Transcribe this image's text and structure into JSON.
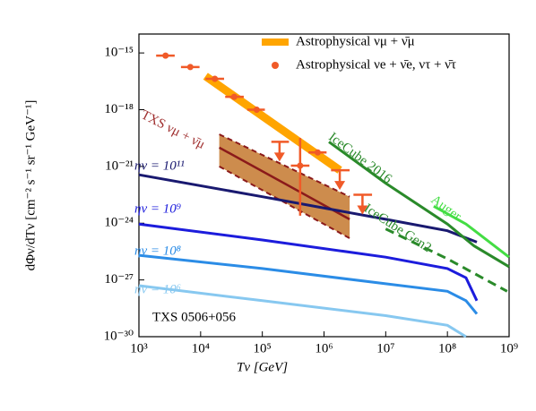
{
  "chart_data": {
    "type": "line",
    "xlabel": "Tν [GeV]",
    "ylabel": "dΦν/dTν [cm⁻² s⁻¹ sr⁻¹ GeV⁻¹]",
    "xscale": "log",
    "yscale": "log",
    "xlim": [
      1000.0,
      1000000000.0
    ],
    "ylim": [
      1e-30,
      1e-14
    ],
    "xticks": [
      {
        "value": 1000.0,
        "label": "10³"
      },
      {
        "value": 10000.0,
        "label": "10⁴"
      },
      {
        "value": 100000.0,
        "label": "10⁵"
      },
      {
        "value": 1000000.0,
        "label": "10⁶"
      },
      {
        "value": 10000000.0,
        "label": "10⁷"
      },
      {
        "value": 100000000.0,
        "label": "10⁸"
      },
      {
        "value": 1000000000.0,
        "label": "10⁹"
      }
    ],
    "yticks": [
      {
        "value": 1e-30,
        "label": "10⁻³⁰"
      },
      {
        "value": 1e-27,
        "label": "10⁻²⁷"
      },
      {
        "value": 1e-24,
        "label": "10⁻²⁴"
      },
      {
        "value": 1e-21,
        "label": "10⁻²¹"
      },
      {
        "value": 1e-18,
        "label": "10⁻¹⁸"
      },
      {
        "value": 1e-15,
        "label": "10⁻¹⁵"
      }
    ],
    "source_label": "TXS 0506+056",
    "lines": [
      {
        "label": "ην = 10¹¹",
        "color": "#191970",
        "dashed": false,
        "x": [
          1000.0,
          100000.0,
          10000000.0,
          100000000.0,
          300000000.0
        ],
        "y": [
          3.6e-22,
          2.5e-23,
          1.6e-24,
          4e-25,
          1e-25
        ]
      },
      {
        "label": "ην = 10⁹",
        "color": "#1c1cdc",
        "dashed": false,
        "x": [
          1000.0,
          100000.0,
          10000000.0,
          100000000.0,
          200000000.0,
          300000000.0
        ],
        "y": [
          8.9e-25,
          1.3e-25,
          1.6e-26,
          4e-27,
          1.3e-27,
          8e-29
        ]
      },
      {
        "label": "ην = 10⁸",
        "color": "#2b8ce6",
        "dashed": false,
        "x": [
          1000.0,
          100000.0,
          10000000.0,
          100000000.0,
          200000000.0,
          300000000.0
        ],
        "y": [
          2e-26,
          4e-27,
          6.3e-28,
          2.5e-28,
          8e-29,
          1.6e-29
        ]
      },
      {
        "label": "ην = 10⁶",
        "color": "#87c8f0",
        "dashed": false,
        "x": [
          1000.0,
          100000.0,
          10000000.0,
          100000000.0,
          200000000.0
        ],
        "y": [
          5e-28,
          8e-29,
          1.3e-29,
          4e-30,
          1e-30
        ]
      },
      {
        "label": "IceCube 2016",
        "color": "#2a8a2a",
        "dashed": false,
        "x": [
          1200000.0,
          10000000.0,
          100000000.0,
          270000000.0,
          1000000000.0
        ],
        "y": [
          2e-20,
          1.3e-22,
          9e-25,
          6.3e-26,
          5e-27
        ]
      },
      {
        "label": "IceCube Gen2",
        "color": "#2a8a2a",
        "dashed": true,
        "x": [
          10000000.0,
          100000000.0,
          930000000.0
        ],
        "y": [
          5e-25,
          1.3e-26,
          2.5e-28
        ]
      },
      {
        "label": "Auger",
        "color": "#44dd44",
        "dashed": false,
        "x": [
          60000000.0,
          200000000.0,
          1000000000.0
        ],
        "y": [
          7.9e-24,
          9e-25,
          1.6e-26
        ]
      }
    ],
    "band": {
      "name": "Astrophysical νμ + ν̄μ",
      "color": "#ffa500",
      "x": [
        12000.0,
        1800000.0
      ],
      "y": [
        5.9e-17,
        6.3e-22
      ]
    },
    "txs": {
      "label": "TXS νμ + ν̄μ",
      "color": "#8b1a1a",
      "fill": "#c8803a",
      "x": [
        20000.0,
        2600000.0
      ],
      "upper": [
        5e-20,
        2.5e-23
      ],
      "center": [
        1e-20,
        1.6e-24
      ],
      "lower": [
        1e-21,
        1.6e-25
      ]
    },
    "points": {
      "name": "Astrophysical νe + ν̄e, ντ + ν̄τ",
      "color": "#f05a28",
      "x": [
        2700.0,
        6800.0,
        17000.0,
        35000.0,
        81000.0,
        410000.0,
        790000.0
      ],
      "x_min": [
        1900.0,
        4800.0,
        12000.0,
        25000.0,
        57000.0,
        290000.0,
        560000.0
      ],
      "x_max": [
        3800.0,
        9600.0,
        24000.0,
        50000.0,
        110000.0,
        580000.0,
        1100000.0
      ],
      "y": [
        7.2e-16,
        1.8e-16,
        4.3e-17,
        4.8e-18,
        1e-18,
        1.1e-21,
        5.5e-21
      ],
      "y_min": [
        5e-16,
        1.3e-16,
        3e-17,
        3.4e-18,
        7e-19,
        2.5e-24,
        4e-21
      ],
      "y_max": [
        1e-15,
        2.5e-16,
        6e-17,
        6.5e-18,
        1.4e-18,
        3.2e-20,
        7.5e-21
      ]
    },
    "limits": {
      "color": "#f05a28",
      "x": [
        190000.0,
        1800000.0,
        4200000.0
      ],
      "x_min": [
        140000.0,
        1300000.0,
        3000000.0
      ],
      "x_max": [
        270000.0,
        2600000.0,
        6000000.0
      ],
      "y": [
        2e-20,
        6.3e-22,
        3.2e-23
      ]
    }
  }
}
